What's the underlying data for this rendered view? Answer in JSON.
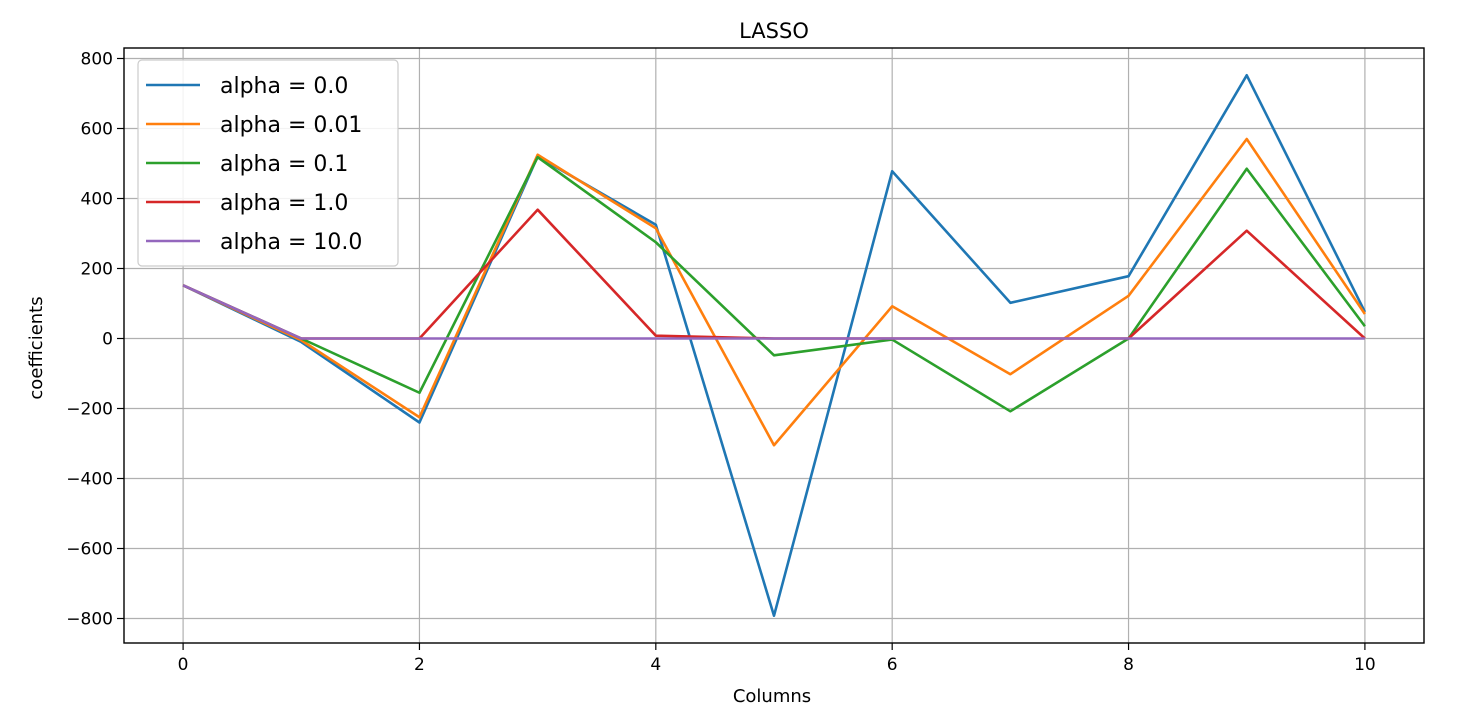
{
  "chart_data": {
    "type": "line",
    "title": "LASSO",
    "xlabel": "Columns",
    "ylabel": "coefficients",
    "xlim": [
      -0.5,
      10.5
    ],
    "ylim": [
      -870,
      830
    ],
    "x": [
      0,
      1,
      2,
      3,
      4,
      5,
      6,
      7,
      8,
      9,
      10
    ],
    "xticks": [
      0,
      2,
      4,
      6,
      8,
      10
    ],
    "yticks": [
      -800,
      -600,
      -400,
      -200,
      0,
      200,
      400,
      600,
      800
    ],
    "xtick_labels": [
      "0",
      "2",
      "4",
      "6",
      "8",
      "10"
    ],
    "ytick_labels": [
      "−800",
      "−600",
      "−400",
      "−200",
      "0",
      "200",
      "400",
      "600",
      "800"
    ],
    "grid": true,
    "legend_position": "top-left",
    "series": [
      {
        "name": "alpha = 0.0",
        "color": "#1f77b4",
        "values": [
          152,
          -10,
          -240,
          520,
          325,
          -792,
          478,
          102,
          178,
          752,
          76
        ]
      },
      {
        "name": "alpha = 0.01",
        "color": "#ff7f0e",
        "values": [
          152,
          -5,
          -225,
          525,
          315,
          -305,
          92,
          -102,
          122,
          570,
          70
        ]
      },
      {
        "name": "alpha = 0.1",
        "color": "#2ca02c",
        "values": [
          152,
          0,
          -155,
          518,
          275,
          -48,
          -3,
          -208,
          0,
          485,
          35
        ]
      },
      {
        "name": "alpha = 1.0",
        "color": "#d62728",
        "values": [
          152,
          0,
          0,
          368,
          8,
          0,
          0,
          0,
          0,
          308,
          0
        ]
      },
      {
        "name": "alpha = 10.0",
        "color": "#9467bd",
        "values": [
          152,
          0,
          0,
          0,
          0,
          0,
          0,
          0,
          0,
          0,
          0
        ]
      }
    ]
  }
}
